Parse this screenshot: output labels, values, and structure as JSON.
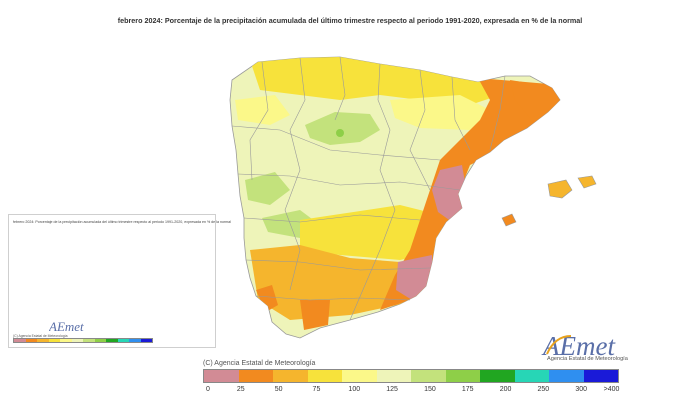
{
  "title": "febrero 2024: Porcentaje de la precipitación acumulada del último trimestre respecto al periodo 1991-2020, expresada en % de la normal",
  "inset": {
    "title": "febrero 2024: Porcentaje de la precipitación acumulada del último trimestre respecto al periodo 1991-2020, expresada en % de la normal",
    "credit": "(C) Agencia Estatal de Meteorología",
    "logo": "AEmet",
    "logo_sub": "Agencia Estatal de Meteorología"
  },
  "logo": {
    "text": "AEmet",
    "subtitle": "Agencia Estatal de Meteorología"
  },
  "credit": "(C) Agencia Estatal de Meteorología",
  "legend": {
    "labels": [
      "0",
      "25",
      "50",
      "75",
      "100",
      "125",
      "150",
      "175",
      "200",
      "250",
      "300",
      ">400"
    ],
    "colors": [
      "#d28b95",
      "#f28a1f",
      "#f5b52d",
      "#f7e23b",
      "#fbf889",
      "#eef4b9",
      "#c3e27c",
      "#8ecf48",
      "#21a621",
      "#27d6b6",
      "#2f8ff0",
      "#1a1ad8"
    ]
  },
  "map_colors": {
    "land": "#eef4b9",
    "above_normal": "#c3e27c",
    "wet_spot": "#8ecf48",
    "near_normal": "#fbf889",
    "below_normal": "#f7e23b",
    "dry": "#f5b52d",
    "very_dry": "#f28a1f",
    "extremely_dry": "#d28b95",
    "borders": "#9a9a9a"
  }
}
